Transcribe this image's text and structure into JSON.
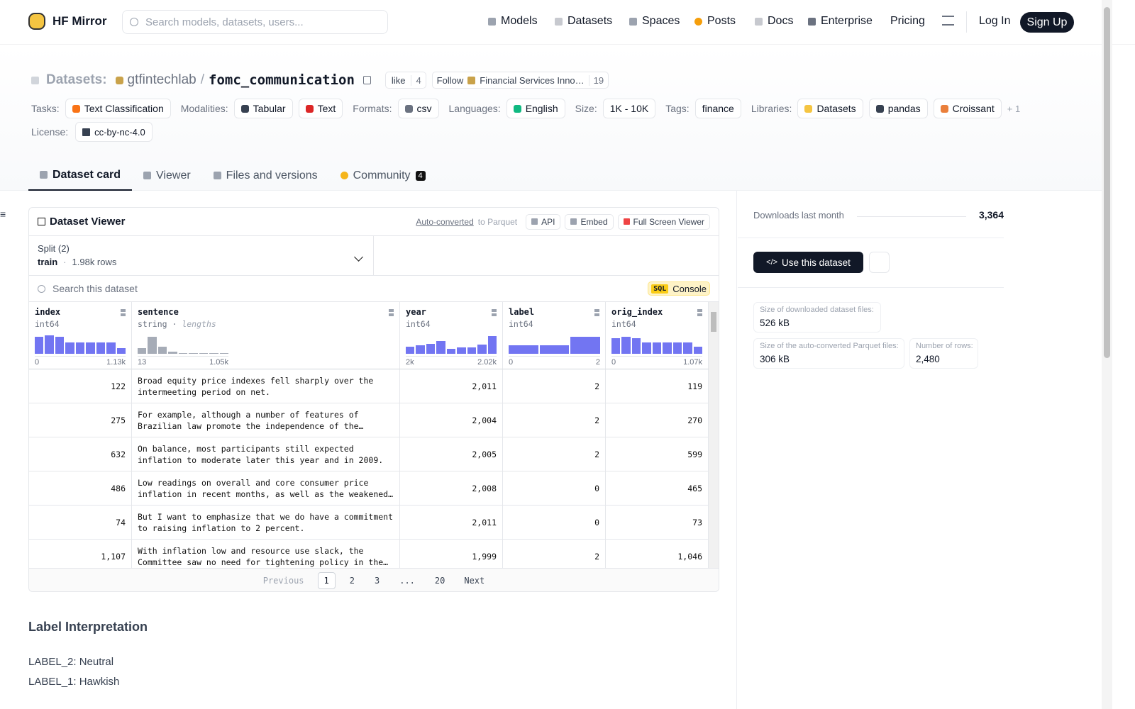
{
  "nav": {
    "logo": "HF Mirror",
    "search": "Search models, datasets, users...",
    "links": [
      "Models",
      "Datasets",
      "Spaces",
      "Posts",
      "Docs",
      "Enterprise",
      "Pricing"
    ],
    "login": "Log In",
    "signup": "Sign Up"
  },
  "header": {
    "prefix": "Datasets:",
    "owner": "gtfintechlab",
    "sep": "/",
    "name": "fomc_communication",
    "like": "like",
    "like_count": "4",
    "follow": "Follow",
    "org": "Financial Services Inno…",
    "follow_count": "19"
  },
  "tags": {
    "groups": [
      {
        "label": "Tasks:",
        "items": [
          "Text Classification"
        ]
      },
      {
        "label": "Modalities:",
        "items": [
          "Tabular",
          "Text"
        ]
      },
      {
        "label": "Formats:",
        "items": [
          "csv"
        ]
      },
      {
        "label": "Languages:",
        "items": [
          "English"
        ]
      },
      {
        "label": "Size:",
        "items": [
          "1K - 10K"
        ]
      },
      {
        "label": "Tags:",
        "items": [
          "finance"
        ]
      },
      {
        "label": "Libraries:",
        "items": [
          "Datasets",
          "pandas",
          "Croissant"
        ]
      }
    ],
    "more": "+ 1",
    "license_label": "License:",
    "license": "cc-by-nc-4.0"
  },
  "tabs": {
    "items": [
      "Dataset card",
      "Viewer",
      "Files and versions",
      "Community"
    ],
    "community_count": "4"
  },
  "viewer": {
    "title": "Dataset Viewer",
    "auto": "Auto-converted",
    "to": "to Parquet",
    "api": "API",
    "embed": "Embed",
    "full": "Full Screen Viewer",
    "split_label": "Split (2)",
    "split": "train",
    "rows_count": "1.98k rows",
    "search": "Search this dataset",
    "sql": "SQL",
    "console": "Console",
    "columns": [
      {
        "name": "index",
        "type": "int64",
        "min": "0",
        "max": "1.13k",
        "hist": [
          24,
          26,
          24,
          16,
          16,
          16,
          16,
          16,
          8
        ]
      },
      {
        "name": "sentence",
        "type": "string",
        "extra": "lengths",
        "min": "13",
        "max": "1.05k",
        "hist": [
          8,
          24,
          10,
          3,
          1,
          1,
          1,
          1,
          1
        ]
      },
      {
        "name": "year",
        "type": "int64",
        "min": "2k",
        "max": "2.02k",
        "hist": [
          10,
          12,
          14,
          18,
          7,
          9,
          9,
          13,
          25
        ]
      },
      {
        "name": "label",
        "type": "int64",
        "min": "0",
        "max": "2",
        "hist": [
          12,
          12,
          24
        ]
      },
      {
        "name": "orig_index",
        "type": "int64",
        "min": "0",
        "max": "1.07k",
        "hist": [
          22,
          24,
          22,
          16,
          16,
          16,
          16,
          16,
          10
        ]
      }
    ],
    "rows": [
      [
        "122",
        "Broad equity price indexes fell sharply over the intermeeting period on net.",
        "2,011",
        "2",
        "119"
      ],
      [
        "275",
        "For example, although a number of features of Brazilian law promote the independence of the…",
        "2,004",
        "2",
        "270"
      ],
      [
        "632",
        "On balance, most participants still expected inflation to moderate later this year and in 2009.",
        "2,005",
        "2",
        "599"
      ],
      [
        "486",
        "Low readings on overall and core consumer price inflation in recent months, as well as the weakened…",
        "2,008",
        "0",
        "465"
      ],
      [
        "74",
        "But I want to emphasize that we do have a commitment to raising inflation to 2 percent.",
        "2,011",
        "0",
        "73"
      ],
      [
        "1,107",
        "With inflation low and resource use slack, the Committee saw no need for tightening policy in the…",
        "1,999",
        "2",
        "1,046"
      ]
    ],
    "pagination": {
      "previous": "Previous",
      "pages": [
        "1",
        "2",
        "3",
        "...",
        "20"
      ],
      "next": "Next"
    }
  },
  "card": {
    "heading": "Label Interpretation",
    "lines": [
      "LABEL_2: Neutral",
      "LABEL_1: Hawkish"
    ]
  },
  "sidebar": {
    "downloads_label": "Downloads last month",
    "downloads": "3,364",
    "use": "Use this dataset",
    "stats": [
      {
        "label": "Size of downloaded dataset files:",
        "value": "526 kB"
      },
      {
        "label": "Size of the auto-converted Parquet files:",
        "value": "306 kB"
      },
      {
        "label": "Number of rows:",
        "value": "2,480"
      }
    ]
  }
}
